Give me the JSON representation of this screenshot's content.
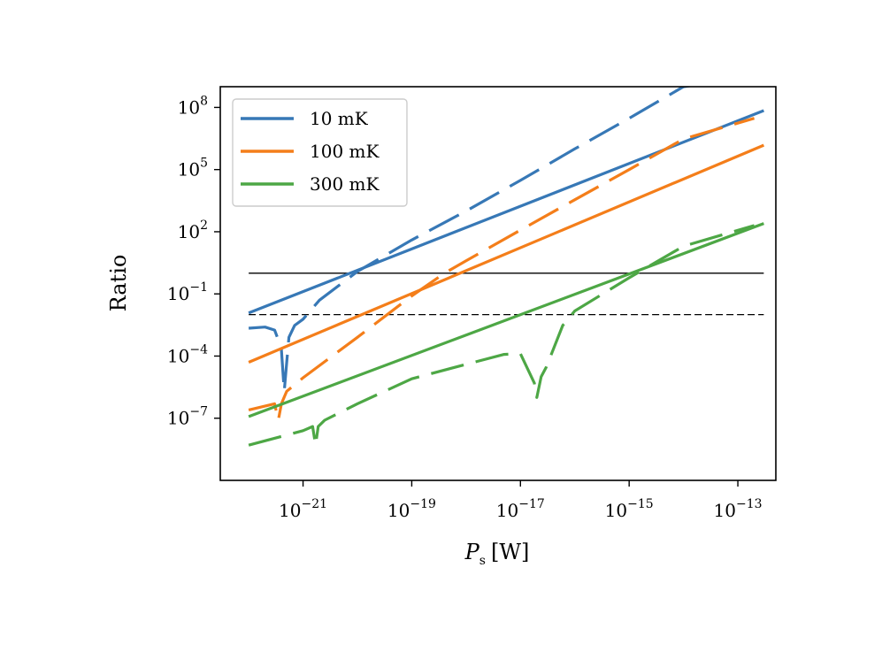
{
  "chart_data": {
    "type": "line",
    "xlabel": {
      "symbol": "P",
      "subscript": "s",
      "unit": "[W]"
    },
    "ylabel": "Ratio",
    "xscale": "log",
    "yscale": "log",
    "xlim": [
      3e-23,
      5e-13
    ],
    "ylim": [
      1e-10,
      1000000000.0
    ],
    "xticks": [
      {
        "value": 1e-21,
        "base": "10",
        "exp": "−21"
      },
      {
        "value": 1e-19,
        "base": "10",
        "exp": "−19"
      },
      {
        "value": 1e-17,
        "base": "10",
        "exp": "−17"
      },
      {
        "value": 1e-15,
        "base": "10",
        "exp": "−15"
      },
      {
        "value": 1e-13,
        "base": "10",
        "exp": "−13"
      }
    ],
    "yticks": [
      {
        "value": 100000000.0,
        "base": "10",
        "exp": "8"
      },
      {
        "value": 100000.0,
        "base": "10",
        "exp": "5"
      },
      {
        "value": 100.0,
        "base": "10",
        "exp": "2"
      },
      {
        "value": 0.1,
        "base": "10",
        "exp": "−1"
      },
      {
        "value": 0.0001,
        "base": "10",
        "exp": "−4"
      },
      {
        "value": 1e-07,
        "base": "10",
        "exp": "−7"
      }
    ],
    "legend": {
      "position": "upper-left"
    },
    "reference_lines": [
      {
        "y": 1,
        "style": "solid",
        "color": "#000000"
      },
      {
        "y": 0.01,
        "style": "dashed",
        "color": "#000000"
      }
    ],
    "series": [
      {
        "name": "10 mK",
        "style": "solid",
        "color": "#3778b6",
        "legend": true,
        "x": [
          1e-22,
          3e-13
        ],
        "y": [
          0.012,
          70000000.0
        ]
      },
      {
        "name": "",
        "style": "dashed",
        "color": "#3778b6",
        "legend": false,
        "x": [
          1e-22,
          2e-22,
          3e-22,
          3.5e-22,
          4e-22,
          4.5e-22,
          5e-22,
          5.5e-22,
          7e-22,
          1e-21,
          2e-21,
          1e-20,
          1e-19,
          1e-18,
          1e-17,
          1e-16,
          1e-15,
          1e-14,
          2e-13
        ],
        "y": [
          0.0022,
          0.0025,
          0.0018,
          0.0006,
          0.0002,
          2e-06,
          5e-05,
          0.0008,
          0.003,
          0.006,
          0.05,
          1.2,
          40,
          1000,
          30000,
          1000000,
          30000000,
          1000000000,
          3000000000
        ]
      },
      {
        "name": "100 mK",
        "style": "solid",
        "color": "#f47e1a",
        "legend": true,
        "x": [
          1e-22,
          3e-13
        ],
        "y": [
          5e-05,
          1500000.0
        ]
      },
      {
        "name": "",
        "style": "dashed",
        "color": "#f47e1a",
        "legend": false,
        "x": [
          1e-22,
          3e-22,
          3.5e-22,
          4e-22,
          5e-22,
          1e-21,
          1e-20,
          1e-19,
          4e-19,
          1e-18,
          1e-17,
          1e-16,
          1e-15,
          1e-14,
          2e-13
        ],
        "y": [
          2.5e-07,
          5e-07,
          8e-08,
          5e-07,
          2e-06,
          9e-06,
          0.0008,
          0.08,
          1,
          4,
          120,
          3500,
          100000,
          3000000,
          30000000
        ]
      },
      {
        "name": "300 mK",
        "style": "solid",
        "color": "#4da745",
        "legend": true,
        "x": [
          1e-22,
          3e-13
        ],
        "y": [
          1.2e-07,
          250
        ]
      },
      {
        "name": "",
        "style": "dashed",
        "color": "#4da745",
        "legend": false,
        "x": [
          1e-22,
          1e-21,
          1.5e-21,
          1.7e-21,
          1.9e-21,
          2.5e-21,
          1e-20,
          1e-19,
          1e-18,
          5e-18,
          1e-17,
          1.8e-17,
          2e-17,
          2.4e-17,
          3e-17,
          6e-17,
          1e-16,
          1e-15,
          1e-14,
          2e-13
        ],
        "y": [
          5e-09,
          2.5e-08,
          4e-08,
          5e-09,
          4e-08,
          8e-08,
          5e-07,
          8e-06,
          4e-05,
          0.00012,
          0.00013,
          5e-06,
          1e-06,
          1e-05,
          3e-05,
          0.003,
          0.015,
          0.6,
          20,
          200
        ]
      }
    ]
  }
}
